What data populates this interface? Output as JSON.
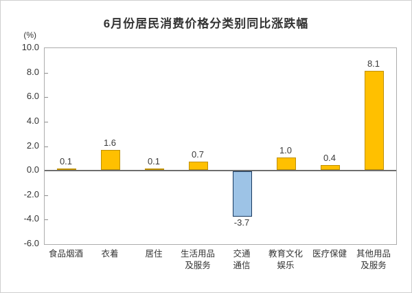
{
  "window": {
    "background_color": "#ffffff",
    "border_color": "#cfcfcf"
  },
  "chart_data": {
    "type": "bar",
    "title": "6月份居民消费价格分类别同比涨跌幅",
    "unit_label": "(%)",
    "categories": [
      "食品烟酒",
      "衣着",
      "居住",
      "生活用品及服务",
      "交通通信",
      "教育文化娱乐",
      "医疗保健",
      "其他用品及服务"
    ],
    "category_lines": [
      [
        "食品烟酒"
      ],
      [
        "衣着"
      ],
      [
        "居住"
      ],
      [
        "生活用品",
        "及服务"
      ],
      [
        "交通",
        "通信"
      ],
      [
        "教育文化",
        "娱乐"
      ],
      [
        "医疗保健"
      ],
      [
        "其他用品",
        "及服务"
      ]
    ],
    "values": [
      0.1,
      1.6,
      0.1,
      0.7,
      -3.7,
      1.0,
      0.4,
      8.1
    ],
    "value_labels": [
      "0.1",
      "1.6",
      "0.1",
      "0.7",
      "-3.7",
      "1.0",
      "0.4",
      "8.1"
    ],
    "y_ticks": [
      10.0,
      8.0,
      6.0,
      4.0,
      2.0,
      0.0,
      -2.0,
      -4.0,
      -6.0
    ],
    "y_tick_labels": [
      "10.0",
      "8.0",
      "6.0",
      "4.0",
      "2.0",
      "0.0",
      "-2.0",
      "-4.0",
      "-6.0"
    ],
    "ylim": [
      -6.0,
      10.0
    ],
    "xlabel": "",
    "ylabel": "(%)",
    "grid": false,
    "legend": "none",
    "colors": {
      "bar_positive_fill": "#FFC000",
      "bar_positive_border": "#BF8F00",
      "bar_negative_fill": "#9DC3E6",
      "bar_negative_border": "#17375E",
      "zero_line": "#6e6e6e",
      "plot_border": "#ababab",
      "tick_mark": "#8a8a8a",
      "text": "#333333"
    }
  }
}
